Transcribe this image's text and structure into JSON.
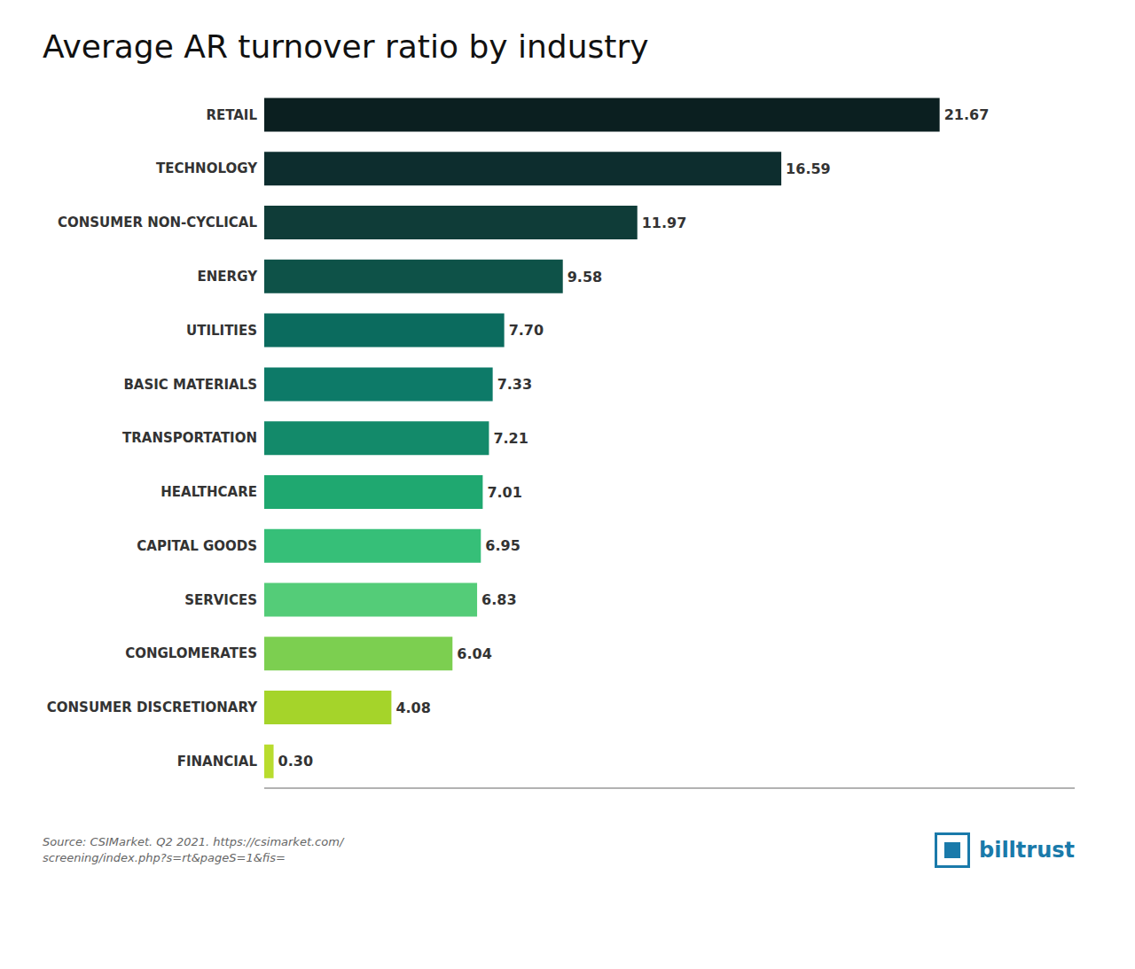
{
  "chart_data": {
    "type": "bar",
    "orientation": "horizontal",
    "title": "Average AR turnover ratio by industry",
    "categories": [
      "RETAIL",
      "TECHNOLOGY",
      "CONSUMER NON-CYCLICAL",
      "ENERGY",
      "UTILITIES",
      "BASIC MATERIALS",
      "TRANSPORTATION",
      "HEALTHCARE",
      "CAPITAL GOODS",
      "SERVICES",
      "CONGLOMERATES",
      "CONSUMER DISCRETIONARY",
      "FINANCIAL"
    ],
    "values": [
      21.67,
      16.59,
      11.97,
      9.58,
      7.7,
      7.33,
      7.21,
      7.01,
      6.95,
      6.83,
      6.04,
      4.08,
      0.3
    ],
    "value_labels": [
      "21.67",
      "16.59",
      "11.97",
      "9.58",
      "7.70",
      "7.33",
      "7.21",
      "7.01",
      "6.95",
      "6.83",
      "6.04",
      "4.08",
      "0.30"
    ],
    "colors": [
      "#0b1f20",
      "#0d2d2e",
      "#0f3c38",
      "#0e5248",
      "#0b6b5e",
      "#0d7a68",
      "#138a6a",
      "#1fa870",
      "#36bf78",
      "#54cc78",
      "#7ccf50",
      "#a5d42a",
      "#b8dc2e"
    ],
    "data_labels": true,
    "xlim": [
      0,
      26.004
    ],
    "grid": false,
    "tick_labels": "y",
    "annotations": [
      "Source: CSIMarket. Q2 2021. https://csimarket.com/\nscreening/index.php?s=rt&pageS=1&fis=",
      "billtrust"
    ]
  }
}
